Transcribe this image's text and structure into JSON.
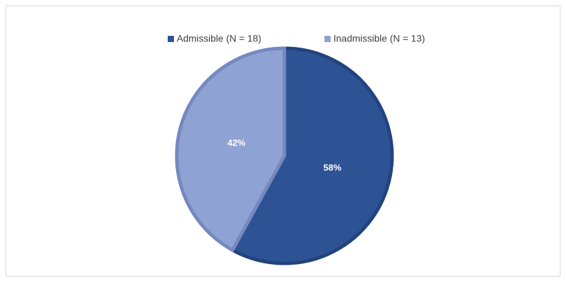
{
  "chart_data": {
    "type": "pie",
    "categories": [
      "Admissible (N = 18)",
      "Inadmissible (N = 13)"
    ],
    "values": [
      58,
      42
    ],
    "value_labels": [
      "58%",
      "42%"
    ],
    "colors": [
      "#2e5395",
      "#8fa2d4"
    ],
    "edge_colors": [
      "#22447d",
      "#7689bf"
    ],
    "legend": "top"
  }
}
